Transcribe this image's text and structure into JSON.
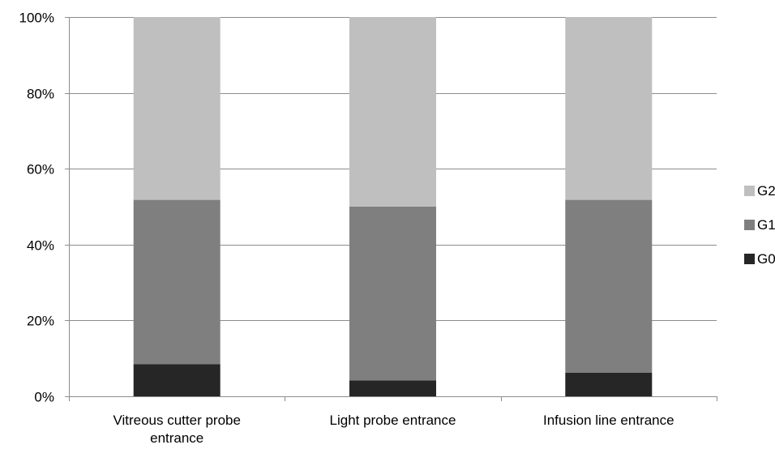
{
  "chart_data": {
    "type": "bar",
    "stacked": true,
    "normalized_percent": true,
    "title": "",
    "xlabel": "",
    "ylabel": "",
    "categories": [
      "Vitreous cutter probe entrance",
      "Light probe entrance",
      "Infusion line entrance"
    ],
    "category_label_lines": [
      [
        "Vitreous cutter probe",
        "entrance"
      ],
      [
        "Light probe entrance"
      ],
      [
        "Infusion line entrance"
      ]
    ],
    "series": [
      {
        "name": "G0",
        "color": "#262626",
        "values": [
          8.5,
          4.2,
          6.2
        ]
      },
      {
        "name": "G1",
        "color": "#7f7f7f",
        "values": [
          43.3,
          45.8,
          45.6
        ]
      },
      {
        "name": "G2",
        "color": "#bfbfbf",
        "values": [
          48.2,
          50.0,
          48.2
        ]
      }
    ],
    "ylim": [
      0,
      100
    ],
    "yticks": [
      0,
      20,
      40,
      60,
      80,
      100
    ],
    "ytick_labels": [
      "0%",
      "20%",
      "40%",
      "60%",
      "80%",
      "100%"
    ],
    "grid": true,
    "legend": {
      "position": "right",
      "order": [
        "G2",
        "G1",
        "G0"
      ],
      "labels": [
        "G2",
        "G1",
        "G0"
      ]
    }
  }
}
